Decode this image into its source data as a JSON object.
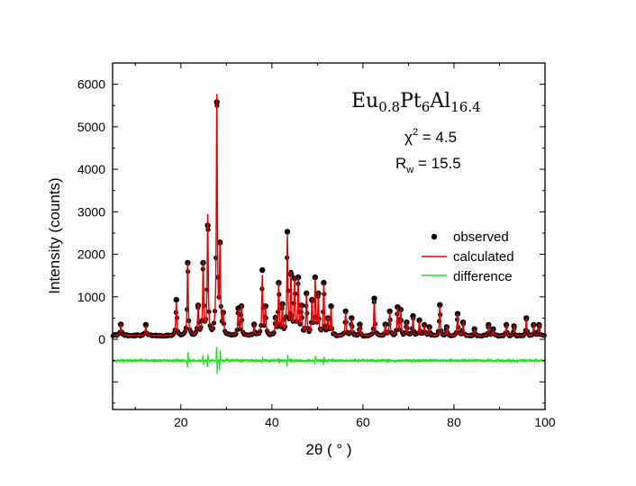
{
  "chart_data": {
    "type": "scatter",
    "title": "",
    "xlabel": "2θ ( ° )",
    "ylabel": "Intensity (counts)",
    "xlim": [
      5,
      100
    ],
    "ylim": [
      -1650,
      6500
    ],
    "x_ticks": [
      20,
      40,
      60,
      80,
      100
    ],
    "y_ticks": [
      0,
      1000,
      2000,
      3000,
      4000,
      5000,
      6000
    ],
    "baseline": 80,
    "difference_offset": -500,
    "annotations": {
      "formula": {
        "base1": "Eu",
        "sub1": "0.8",
        "base2": "Pt",
        "sub2": "6",
        "base3": "Al",
        "sub3": "16.4"
      },
      "chi2": {
        "symbol": "χ",
        "sup": "2",
        "rest": " = 4.5"
      },
      "rw": {
        "base": "R",
        "sub": "w",
        "rest": " = 15.5"
      }
    },
    "legend": {
      "position": "right",
      "entries": [
        {
          "label": "observed",
          "color": "#000000",
          "marker": "dot"
        },
        {
          "label": "calculated",
          "color": "#e00000",
          "marker": "line"
        },
        {
          "label": "difference",
          "color": "#22dd22",
          "marker": "line"
        }
      ]
    },
    "peaks": [
      {
        "x": 6.8,
        "h": 250,
        "obs": 270,
        "d": 0
      },
      {
        "x": 12.3,
        "h": 230,
        "obs": 260,
        "d": 0
      },
      {
        "x": 19.0,
        "h": 800,
        "obs": 850,
        "d": 60
      },
      {
        "x": 21.5,
        "h": 1700,
        "obs": 1720,
        "d": 350
      },
      {
        "x": 23.8,
        "h": 700,
        "obs": 720,
        "d": 0
      },
      {
        "x": 24.9,
        "h": 1700,
        "obs": 1720,
        "d": -200
      },
      {
        "x": 25.9,
        "h": 2800,
        "obs": 2600,
        "d": 300
      },
      {
        "x": 27.9,
        "h": 5600,
        "obs": 5500,
        "d": -600
      },
      {
        "x": 28.6,
        "h": 2000,
        "obs": 2200,
        "d": 400
      },
      {
        "x": 29.3,
        "h": 500,
        "obs": 550,
        "d": 0
      },
      {
        "x": 32.6,
        "h": 600,
        "obs": 650,
        "d": 0
      },
      {
        "x": 33.3,
        "h": 700,
        "obs": 700,
        "d": 0
      },
      {
        "x": 36.1,
        "h": 250,
        "obs": 270,
        "d": 0
      },
      {
        "x": 37.9,
        "h": 1400,
        "obs": 1550,
        "d": 150
      },
      {
        "x": 38.6,
        "h": 650,
        "obs": 700,
        "d": 0
      },
      {
        "x": 40.8,
        "h": 400,
        "obs": 430,
        "d": 0
      },
      {
        "x": 41.5,
        "h": 1200,
        "obs": 1250,
        "d": -100
      },
      {
        "x": 42.3,
        "h": 700,
        "obs": 750,
        "d": 0
      },
      {
        "x": 43.4,
        "h": 2300,
        "obs": 2450,
        "d": 250
      },
      {
        "x": 44.2,
        "h": 1400,
        "obs": 1450,
        "d": -100
      },
      {
        "x": 45.0,
        "h": 1300,
        "obs": 1350,
        "d": 0
      },
      {
        "x": 45.8,
        "h": 1300,
        "obs": 1380,
        "d": 0
      },
      {
        "x": 46.5,
        "h": 700,
        "obs": 720,
        "d": 0
      },
      {
        "x": 47.6,
        "h": 950,
        "obs": 1000,
        "d": 0
      },
      {
        "x": 48.8,
        "h": 800,
        "obs": 850,
        "d": 0
      },
      {
        "x": 49.5,
        "h": 1300,
        "obs": 1380,
        "d": 180
      },
      {
        "x": 50.2,
        "h": 950,
        "obs": 1000,
        "d": 0
      },
      {
        "x": 51.4,
        "h": 1200,
        "obs": 1250,
        "d": 150
      },
      {
        "x": 52.3,
        "h": 400,
        "obs": 420,
        "d": 0
      },
      {
        "x": 53.0,
        "h": 650,
        "obs": 700,
        "d": 0
      },
      {
        "x": 56.2,
        "h": 550,
        "obs": 580,
        "d": 0
      },
      {
        "x": 57.5,
        "h": 400,
        "obs": 420,
        "d": 0
      },
      {
        "x": 59.3,
        "h": 250,
        "obs": 270,
        "d": 0
      },
      {
        "x": 62.5,
        "h": 850,
        "obs": 880,
        "d": 0
      },
      {
        "x": 64.9,
        "h": 250,
        "obs": 270,
        "d": 0
      },
      {
        "x": 65.9,
        "h": 550,
        "obs": 580,
        "d": 0
      },
      {
        "x": 67.6,
        "h": 650,
        "obs": 680,
        "d": 0
      },
      {
        "x": 68.3,
        "h": 600,
        "obs": 620,
        "d": 0
      },
      {
        "x": 69.6,
        "h": 300,
        "obs": 320,
        "d": 0
      },
      {
        "x": 71.0,
        "h": 450,
        "obs": 470,
        "d": 0
      },
      {
        "x": 72.4,
        "h": 350,
        "obs": 370,
        "d": 0
      },
      {
        "x": 73.5,
        "h": 250,
        "obs": 260,
        "d": 0
      },
      {
        "x": 74.6,
        "h": 200,
        "obs": 210,
        "d": 0
      },
      {
        "x": 76.9,
        "h": 700,
        "obs": 730,
        "d": 0
      },
      {
        "x": 78.4,
        "h": 200,
        "obs": 210,
        "d": 0
      },
      {
        "x": 80.8,
        "h": 500,
        "obs": 520,
        "d": 0
      },
      {
        "x": 82.0,
        "h": 300,
        "obs": 320,
        "d": 0
      },
      {
        "x": 84.5,
        "h": 150,
        "obs": 160,
        "d": 0
      },
      {
        "x": 87.6,
        "h": 250,
        "obs": 260,
        "d": 0
      },
      {
        "x": 88.6,
        "h": 150,
        "obs": 160,
        "d": 0
      },
      {
        "x": 91.5,
        "h": 250,
        "obs": 260,
        "d": 0
      },
      {
        "x": 93.2,
        "h": 220,
        "obs": 230,
        "d": 0
      },
      {
        "x": 95.9,
        "h": 400,
        "obs": 420,
        "d": 0
      },
      {
        "x": 97.5,
        "h": 250,
        "obs": 260,
        "d": 0
      },
      {
        "x": 98.7,
        "h": 250,
        "obs": 260,
        "d": 0
      }
    ]
  }
}
